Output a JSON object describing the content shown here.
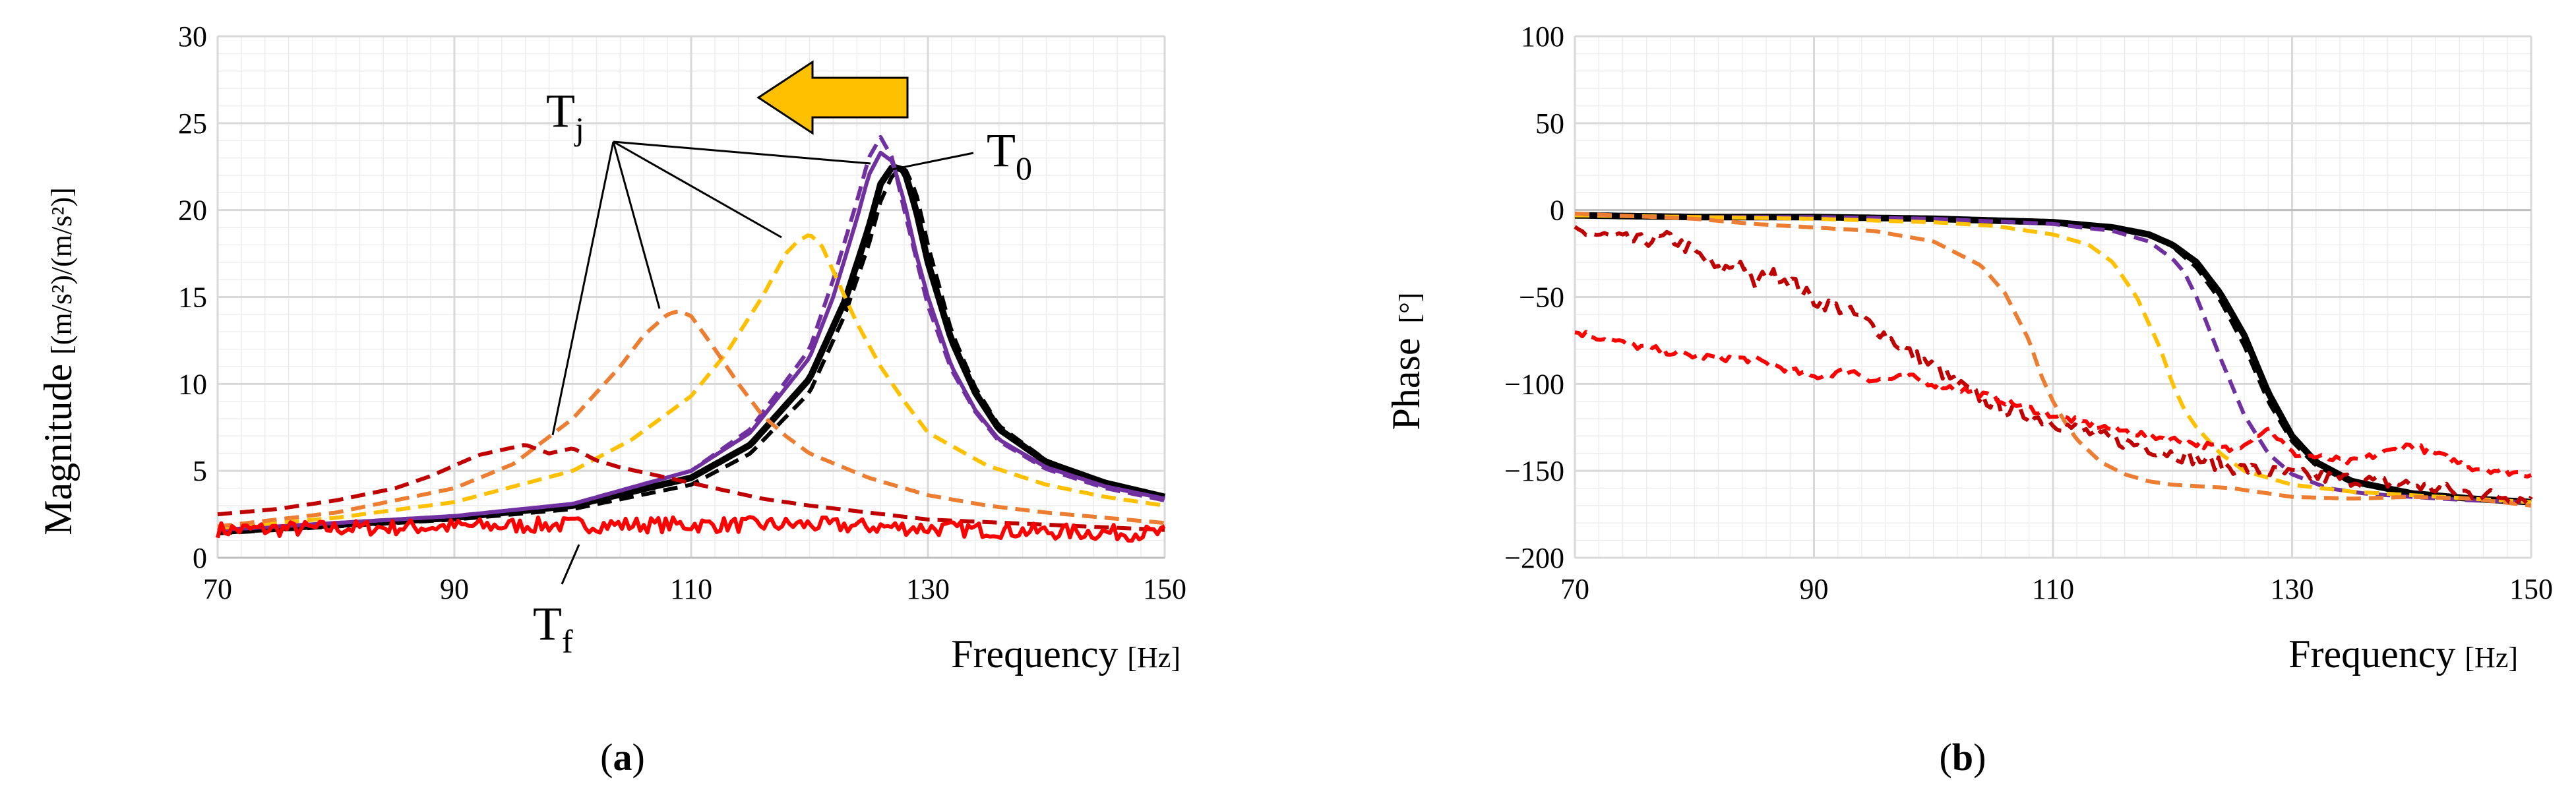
{
  "colors": {
    "black": "#000000",
    "purple": "#7030A0",
    "yellow": "#FFC000",
    "orange": "#ED7D31",
    "darkred": "#C00000",
    "red": "#FF0000",
    "arrow": "#FFC000",
    "grid": "#D9D9D9"
  },
  "chart_data": [
    {
      "id": "a",
      "type": "line",
      "caption": {
        "open": "(",
        "letter": "a",
        "close": ")"
      },
      "xlabel": "Frequency",
      "xunit": "[Hz]",
      "ylabel": "Magnitude",
      "yunit": "[(m/s²)/(m/s²)]",
      "xlim": [
        70,
        150
      ],
      "ylim": [
        0,
        30
      ],
      "xticks": [
        70,
        90,
        110,
        130,
        150
      ],
      "yticks": [
        0,
        5,
        10,
        15,
        20,
        25,
        30
      ],
      "grid": true,
      "annotations": {
        "tj": {
          "base": "T",
          "sub": "j"
        },
        "t0": {
          "base": "T",
          "sub": "0"
        },
        "tf": {
          "base": "T",
          "sub": "f"
        },
        "arrow_direction": "left"
      },
      "series": [
        {
          "name": "T0 black solid",
          "style": "solid",
          "color": "black",
          "width": 10,
          "x": [
            70,
            80,
            90,
            100,
            110,
            115,
            120,
            123,
            125,
            126,
            127,
            128,
            129,
            130,
            132,
            134,
            136,
            140,
            145,
            150
          ],
          "y": [
            1.5,
            1.9,
            2.3,
            3.0,
            4.6,
            6.5,
            10.3,
            14.8,
            19.0,
            21.5,
            22.5,
            22.3,
            20.0,
            17.0,
            12.5,
            9.5,
            7.4,
            5.5,
            4.3,
            3.5
          ]
        },
        {
          "name": "T0 black dashed",
          "style": "dashed",
          "color": "black",
          "width": 6,
          "x": [
            70,
            80,
            90,
            100,
            110,
            115,
            120,
            123,
            125,
            126,
            127,
            128,
            129,
            130,
            132,
            134,
            136,
            140,
            145,
            150
          ],
          "y": [
            1.4,
            1.8,
            2.2,
            2.8,
            4.2,
            6.0,
            9.5,
            14.0,
            18.0,
            20.5,
            22.0,
            22.5,
            21.0,
            18.0,
            13.0,
            9.8,
            7.6,
            5.6,
            4.3,
            3.4
          ]
        },
        {
          "name": "Tj purple solid",
          "style": "solid",
          "color": "purple",
          "width": 6,
          "x": [
            70,
            80,
            90,
            100,
            110,
            115,
            120,
            122,
            124,
            125,
            126,
            127,
            128,
            129,
            130,
            132,
            134,
            136,
            140,
            145,
            150
          ],
          "y": [
            1.6,
            2.0,
            2.4,
            3.1,
            5.0,
            7.2,
            11.5,
            15.0,
            19.5,
            22.0,
            23.3,
            22.8,
            20.5,
            17.5,
            15.0,
            11.0,
            8.5,
            6.8,
            5.2,
            4.1,
            3.4
          ]
        },
        {
          "name": "Tj purple dashed",
          "style": "dashed",
          "color": "purple",
          "width": 6,
          "x": [
            70,
            80,
            90,
            100,
            110,
            115,
            120,
            122,
            124,
            125,
            126,
            127,
            128,
            130,
            132,
            134,
            136,
            140,
            145,
            150
          ],
          "y": [
            1.6,
            2.0,
            2.4,
            3.1,
            5.0,
            7.4,
            12.0,
            16.0,
            20.5,
            23.0,
            24.2,
            23.0,
            20.0,
            14.5,
            10.8,
            8.4,
            6.7,
            5.1,
            4.0,
            3.3
          ]
        },
        {
          "name": "Tj yellow dashed",
          "style": "dashed",
          "color": "yellow",
          "width": 6,
          "x": [
            70,
            80,
            90,
            100,
            105,
            110,
            113,
            116,
            118,
            119,
            120,
            121,
            122,
            124,
            126,
            128,
            130,
            135,
            140,
            145,
            150
          ],
          "y": [
            1.7,
            2.3,
            3.2,
            5.0,
            6.8,
            9.3,
            11.8,
            15.0,
            17.5,
            18.2,
            18.6,
            18.0,
            16.5,
            13.5,
            11.0,
            9.0,
            7.2,
            5.3,
            4.2,
            3.5,
            3.0
          ]
        },
        {
          "name": "Tj orange dashed",
          "style": "dashed",
          "color": "orange",
          "width": 6,
          "x": [
            70,
            80,
            90,
            95,
            100,
            104,
            106,
            108,
            109,
            110,
            112,
            114,
            116,
            118,
            120,
            125,
            130,
            135,
            140,
            145,
            150
          ],
          "y": [
            1.8,
            2.6,
            4.0,
            5.4,
            8.0,
            11.0,
            12.8,
            14.0,
            14.2,
            13.9,
            12.0,
            10.0,
            8.2,
            7.0,
            6.0,
            4.6,
            3.6,
            3.0,
            2.6,
            2.3,
            2.0
          ]
        },
        {
          "name": "Tj darkred dashed",
          "style": "dashed",
          "color": "darkred",
          "width": 6,
          "x": [
            70,
            75,
            80,
            85,
            88,
            90,
            92,
            94,
            96,
            98,
            100,
            102,
            104,
            108,
            112,
            116,
            120,
            125,
            130,
            140,
            150
          ],
          "y": [
            2.5,
            2.8,
            3.3,
            4.0,
            4.7,
            5.3,
            5.9,
            6.2,
            6.5,
            6.0,
            6.3,
            5.6,
            5.2,
            4.6,
            4.0,
            3.4,
            3.0,
            2.6,
            2.2,
            1.9,
            1.6
          ]
        },
        {
          "name": "Tf red solid",
          "style": "solid",
          "color": "red",
          "width": 6,
          "noise": 0.45,
          "x": [
            70,
            80,
            90,
            100,
            110,
            120,
            130,
            140,
            150
          ],
          "y": [
            1.6,
            1.7,
            1.8,
            1.9,
            1.9,
            1.9,
            1.7,
            1.5,
            1.4
          ]
        }
      ]
    },
    {
      "id": "b",
      "type": "line",
      "caption": {
        "open": "(",
        "letter": "b",
        "close": ")"
      },
      "xlabel": "Frequency",
      "xunit": "[Hz]",
      "ylabel": "Phase",
      "yunit": "[°]",
      "xlim": [
        70,
        150
      ],
      "ylim": [
        -200,
        100
      ],
      "xticks": [
        70,
        90,
        110,
        130,
        150
      ],
      "yticks": [
        -200,
        -150,
        -100,
        -50,
        0,
        50,
        100
      ],
      "grid": true,
      "series": [
        {
          "name": "T0 black solid",
          "style": "solid",
          "color": "black",
          "width": 10,
          "x": [
            70,
            80,
            90,
            100,
            110,
            115,
            118,
            120,
            122,
            124,
            126,
            128,
            130,
            132,
            135,
            140,
            145,
            150
          ],
          "y": [
            -3,
            -4,
            -4,
            -5,
            -7,
            -10,
            -14,
            -20,
            -30,
            -48,
            -72,
            -105,
            -130,
            -145,
            -156,
            -163,
            -166,
            -168
          ]
        },
        {
          "name": "T0 black dashed",
          "style": "dashed",
          "color": "black",
          "width": 6,
          "x": [
            70,
            80,
            90,
            100,
            110,
            115,
            118,
            120,
            122,
            124,
            126,
            128,
            130,
            132,
            135,
            140,
            145,
            150
          ],
          "y": [
            -3,
            -4,
            -4,
            -5,
            -7,
            -10,
            -14,
            -21,
            -33,
            -52,
            -78,
            -110,
            -133,
            -147,
            -157,
            -163,
            -166,
            -168
          ]
        },
        {
          "name": "Tj purple dashed",
          "style": "dashed",
          "color": "purple",
          "width": 6,
          "x": [
            70,
            80,
            90,
            100,
            110,
            115,
            118,
            120,
            121,
            122,
            124,
            126,
            128,
            130,
            133,
            136,
            140,
            145,
            150
          ],
          "y": [
            -3,
            -4,
            -4,
            -5,
            -8,
            -12,
            -18,
            -28,
            -36,
            -50,
            -85,
            -118,
            -140,
            -152,
            -160,
            -163,
            -165,
            -167,
            -168
          ]
        },
        {
          "name": "Tj yellow dashed",
          "style": "dashed",
          "color": "yellow",
          "width": 6,
          "x": [
            70,
            80,
            90,
            100,
            105,
            110,
            113,
            115,
            117,
            119,
            120,
            121,
            122,
            124,
            126,
            130,
            135,
            140,
            145,
            150
          ],
          "y": [
            -3,
            -4,
            -5,
            -7,
            -9,
            -14,
            -20,
            -30,
            -50,
            -80,
            -100,
            -115,
            -125,
            -140,
            -150,
            -158,
            -162,
            -164,
            -166,
            -168
          ]
        },
        {
          "name": "Tj orange dashed",
          "style": "dashed",
          "color": "orange",
          "width": 6,
          "x": [
            70,
            80,
            85,
            90,
            95,
            100,
            104,
            106,
            108,
            109,
            110,
            111,
            112,
            114,
            116,
            118,
            120,
            125,
            130,
            135,
            140,
            145,
            150
          ],
          "y": [
            -2,
            -5,
            -8,
            -10,
            -12,
            -18,
            -32,
            -48,
            -75,
            -95,
            -110,
            -122,
            -132,
            -145,
            -152,
            -156,
            -158,
            -160,
            -165,
            -166,
            -165,
            -166,
            -170
          ]
        },
        {
          "name": "Tj darkred dashed",
          "style": "dashed",
          "color": "darkred",
          "width": 6,
          "noise": 4,
          "x": [
            70,
            75,
            78,
            80,
            82,
            84,
            85,
            86,
            88,
            90,
            92,
            94,
            96,
            98,
            100,
            102,
            104,
            106,
            110,
            115,
            120,
            125,
            130,
            135,
            140,
            145,
            150
          ],
          "y": [
            -12,
            -18,
            -16,
            -24,
            -35,
            -30,
            -44,
            -36,
            -40,
            -52,
            -56,
            -62,
            -72,
            -82,
            -90,
            -100,
            -108,
            -115,
            -122,
            -132,
            -140,
            -148,
            -152,
            -155,
            -158,
            -163,
            -166
          ]
        },
        {
          "name": "Tf red dashed",
          "style": "dashed",
          "color": "red",
          "width": 6,
          "noise": 2,
          "x": [
            70,
            75,
            80,
            85,
            90,
            93,
            95,
            98,
            100,
            103,
            106,
            110,
            115,
            120,
            125,
            128,
            130,
            135,
            140,
            145,
            150
          ],
          "y": [
            -70,
            -78,
            -84,
            -86,
            -96,
            -92,
            -98,
            -96,
            -100,
            -104,
            -110,
            -118,
            -126,
            -132,
            -138,
            -125,
            -140,
            -145,
            -135,
            -148,
            -152
          ]
        }
      ]
    }
  ]
}
